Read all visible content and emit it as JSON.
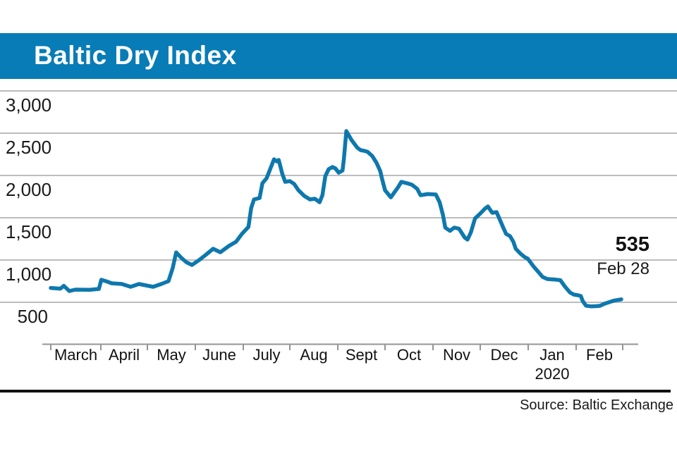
{
  "header": {
    "title": "Baltic Dry Index",
    "bar_color": "#087cb6",
    "text_color": "#ffffff"
  },
  "chart_data": {
    "type": "line",
    "title": "Baltic Dry Index",
    "legend": "none",
    "grid": "horizontal-only",
    "line_color": "#0e78ad",
    "gridline_color": "#bcbcbc",
    "axis_color": "#949494",
    "y_axis": {
      "range": [
        500,
        3000
      ],
      "ticks": [
        {
          "value": 3000,
          "label": "3,000"
        },
        {
          "value": 2500,
          "label": "2,500"
        },
        {
          "value": 2000,
          "label": "2,000"
        },
        {
          "value": 1500,
          "label": "1,500"
        },
        {
          "value": 1000,
          "label": "1,000"
        },
        {
          "value": 500,
          "label": "500"
        }
      ]
    },
    "x_axis": {
      "unit": "months since 2019-03-01",
      "months": [
        {
          "label": "March"
        },
        {
          "label": "April"
        },
        {
          "label": "May"
        },
        {
          "label": "June"
        },
        {
          "label": "July"
        },
        {
          "label": "Aug"
        },
        {
          "label": "Sept"
        },
        {
          "label": "Oct"
        },
        {
          "label": "Nov"
        },
        {
          "label": "Dec"
        },
        {
          "label": "Jan",
          "sub": "2020"
        },
        {
          "label": "Feb"
        }
      ]
    },
    "annotation": {
      "value": "535",
      "date": "Feb 28"
    },
    "series": [
      {
        "name": "Baltic Dry Index",
        "points": [
          [
            0,
            670
          ],
          [
            0.19,
            662
          ],
          [
            0.26,
            695
          ],
          [
            0.37,
            633
          ],
          [
            0.49,
            650
          ],
          [
            0.78,
            648
          ],
          [
            0.96,
            658
          ],
          [
            1.01,
            767
          ],
          [
            1.12,
            748
          ],
          [
            1.23,
            725
          ],
          [
            1.45,
            717
          ],
          [
            1.64,
            683
          ],
          [
            1.82,
            717
          ],
          [
            1.97,
            700
          ],
          [
            2.12,
            683
          ],
          [
            2.29,
            717
          ],
          [
            2.44,
            750
          ],
          [
            2.53,
            908
          ],
          [
            2.6,
            1090
          ],
          [
            2.71,
            1025
          ],
          [
            2.81,
            975
          ],
          [
            2.93,
            942
          ],
          [
            3.08,
            1000
          ],
          [
            3.23,
            1067
          ],
          [
            3.37,
            1133
          ],
          [
            3.52,
            1092
          ],
          [
            3.7,
            1167
          ],
          [
            3.85,
            1217
          ],
          [
            3.97,
            1308
          ],
          [
            4.11,
            1392
          ],
          [
            4.17,
            1617
          ],
          [
            4.23,
            1717
          ],
          [
            4.35,
            1733
          ],
          [
            4.41,
            1908
          ],
          [
            4.5,
            1967
          ],
          [
            4.59,
            2092
          ],
          [
            4.66,
            2192
          ],
          [
            4.72,
            2167
          ],
          [
            4.76,
            2183
          ],
          [
            4.84,
            2017
          ],
          [
            4.9,
            1925
          ],
          [
            5,
            1933
          ],
          [
            5.09,
            1900
          ],
          [
            5.18,
            1825
          ],
          [
            5.3,
            1758
          ],
          [
            5.42,
            1717
          ],
          [
            5.52,
            1725
          ],
          [
            5.62,
            1683
          ],
          [
            5.68,
            1767
          ],
          [
            5.74,
            1992
          ],
          [
            5.81,
            2075
          ],
          [
            5.89,
            2100
          ],
          [
            5.95,
            2083
          ],
          [
            6.02,
            2033
          ],
          [
            6.1,
            2058
          ],
          [
            6.13,
            2200
          ],
          [
            6.18,
            2525
          ],
          [
            6.29,
            2420
          ],
          [
            6.41,
            2330
          ],
          [
            6.48,
            2300
          ],
          [
            6.57,
            2290
          ],
          [
            6.63,
            2280
          ],
          [
            6.73,
            2230
          ],
          [
            6.82,
            2150
          ],
          [
            6.9,
            2050
          ],
          [
            6.93,
            1975
          ],
          [
            7,
            1825
          ],
          [
            7.12,
            1742
          ],
          [
            7.27,
            1860
          ],
          [
            7.34,
            1925
          ],
          [
            7.48,
            1905
          ],
          [
            7.56,
            1890
          ],
          [
            7.67,
            1842
          ],
          [
            7.74,
            1767
          ],
          [
            7.89,
            1780
          ],
          [
            8.06,
            1775
          ],
          [
            8.14,
            1683
          ],
          [
            8.21,
            1533
          ],
          [
            8.26,
            1383
          ],
          [
            8.36,
            1345
          ],
          [
            8.45,
            1383
          ],
          [
            8.55,
            1370
          ],
          [
            8.67,
            1267
          ],
          [
            8.73,
            1242
          ],
          [
            8.8,
            1325
          ],
          [
            8.89,
            1492
          ],
          [
            9,
            1550
          ],
          [
            9.1,
            1608
          ],
          [
            9.16,
            1633
          ],
          [
            9.25,
            1558
          ],
          [
            9.34,
            1567
          ],
          [
            9.41,
            1475
          ],
          [
            9.48,
            1383
          ],
          [
            9.54,
            1308
          ],
          [
            9.62,
            1283
          ],
          [
            9.69,
            1217
          ],
          [
            9.74,
            1133
          ],
          [
            9.84,
            1075
          ],
          [
            9.93,
            1033
          ],
          [
            9.99,
            1017
          ],
          [
            10.11,
            925
          ],
          [
            10.21,
            860
          ],
          [
            10.3,
            800
          ],
          [
            10.4,
            775
          ],
          [
            10.55,
            770
          ],
          [
            10.67,
            762
          ],
          [
            10.77,
            683
          ],
          [
            10.87,
            617
          ],
          [
            10.95,
            592
          ],
          [
            11.04,
            583
          ],
          [
            11.1,
            575
          ],
          [
            11.14,
            517
          ],
          [
            11.21,
            460
          ],
          [
            11.33,
            452
          ],
          [
            11.44,
            455
          ],
          [
            11.51,
            458
          ],
          [
            11.61,
            483
          ],
          [
            11.7,
            500
          ],
          [
            11.81,
            520
          ],
          [
            11.9,
            528
          ],
          [
            11.97,
            535
          ]
        ]
      }
    ]
  },
  "footer": {
    "source": "Source: Baltic Exchange"
  }
}
